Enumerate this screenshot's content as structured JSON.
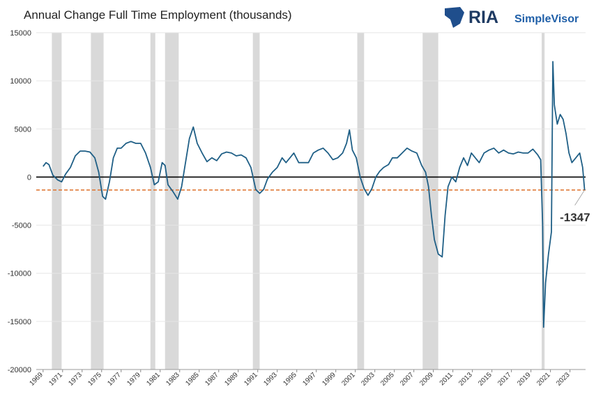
{
  "chart_data": {
    "type": "line",
    "title": "Annual Change Full Time Employment (thousands)",
    "logo": [
      "RIA",
      "SimpleVisor"
    ],
    "x": [
      1969.0,
      1969.3,
      1969.6,
      1970.0,
      1970.5,
      1970.9,
      1971.3,
      1971.8,
      1972.3,
      1972.8,
      1973.3,
      1973.8,
      1974.3,
      1974.7,
      1975.1,
      1975.4,
      1975.8,
      1976.2,
      1976.6,
      1977.0,
      1977.5,
      1978.0,
      1978.5,
      1979.0,
      1979.5,
      1980.0,
      1980.4,
      1980.8,
      1981.2,
      1981.5,
      1981.8,
      1982.3,
      1982.8,
      1983.2,
      1983.6,
      1984.0,
      1984.4,
      1984.8,
      1985.3,
      1985.8,
      1986.3,
      1986.8,
      1987.3,
      1987.8,
      1988.3,
      1988.8,
      1989.3,
      1989.8,
      1990.3,
      1990.8,
      1991.2,
      1991.6,
      1992.0,
      1992.5,
      1993.0,
      1993.5,
      1993.9,
      1994.3,
      1994.7,
      1995.2,
      1995.7,
      1996.2,
      1996.7,
      1997.2,
      1997.7,
      1998.2,
      1998.7,
      1999.2,
      1999.7,
      2000.1,
      2000.4,
      2000.7,
      2001.1,
      2001.5,
      2001.9,
      2002.3,
      2002.7,
      2003.1,
      2003.5,
      2003.9,
      2004.4,
      2004.8,
      2005.3,
      2005.8,
      2006.3,
      2006.8,
      2007.3,
      2007.8,
      2008.2,
      2008.5,
      2008.8,
      2009.1,
      2009.5,
      2009.9,
      2010.2,
      2010.5,
      2010.9,
      2011.3,
      2011.7,
      2012.1,
      2012.5,
      2012.9,
      2013.3,
      2013.7,
      2014.2,
      2014.7,
      2015.2,
      2015.7,
      2016.2,
      2016.7,
      2017.2,
      2017.7,
      2018.2,
      2018.7,
      2019.2,
      2019.7,
      2020.0,
      2020.2,
      2020.3,
      2020.5,
      2020.8,
      2021.1,
      2021.25,
      2021.4,
      2021.7,
      2022.0,
      2022.3,
      2022.6,
      2022.9,
      2023.2,
      2023.6,
      2024.0,
      2024.3,
      2024.5
    ],
    "series": [
      {
        "color": "#1f5f86",
        "values": [
          1100,
          1500,
          1300,
          200,
          -300,
          -500,
          300,
          1000,
          2200,
          2700,
          2700,
          2600,
          2000,
          500,
          -2000,
          -2300,
          -500,
          2000,
          3000,
          3000,
          3500,
          3700,
          3500,
          3500,
          2500,
          1000,
          -800,
          -500,
          1500,
          1200,
          -800,
          -1500,
          -2300,
          -1000,
          1500,
          4000,
          5200,
          3500,
          2500,
          1600,
          2000,
          1700,
          2400,
          2600,
          2500,
          2200,
          2300,
          2000,
          1000,
          -1300,
          -1700,
          -1300,
          -200,
          500,
          1000,
          2000,
          1500,
          2000,
          2500,
          1500,
          1500,
          1500,
          2500,
          2800,
          3000,
          2500,
          1800,
          2000,
          2500,
          3500,
          4900,
          2800,
          2000,
          0,
          -1200,
          -1900,
          -1200,
          0,
          600,
          1000,
          1300,
          2000,
          2000,
          2500,
          3000,
          2700,
          2500,
          1200,
          500,
          -1000,
          -4000,
          -6500,
          -8000,
          -8300,
          -4000,
          -1000,
          0,
          -500,
          1000,
          2000,
          1200,
          2500,
          2000,
          1500,
          2500,
          2800,
          3000,
          2500,
          2800,
          2500,
          2400,
          2600,
          2500,
          2500,
          2900,
          2300,
          1800,
          -5000,
          -15600,
          -11000,
          -8000,
          -5700,
          12000,
          7500,
          5500,
          6500,
          6000,
          4500,
          2500,
          1500,
          2000,
          2500,
          1000,
          -1347
        ]
      }
    ],
    "recessions": [
      [
        1969.9,
        1970.9
      ],
      [
        1973.9,
        1975.2
      ],
      [
        1980.0,
        1980.5
      ],
      [
        1981.5,
        1982.9
      ],
      [
        1990.5,
        1991.2
      ],
      [
        2001.2,
        2001.9
      ],
      [
        2007.9,
        2009.5
      ],
      [
        2020.1,
        2020.4
      ]
    ],
    "reference_line": {
      "value": -1347,
      "label": "-1347",
      "color": "#e07b39"
    },
    "xlim": [
      1968.3,
      2024.6
    ],
    "xticks": [
      1969,
      1971,
      1973,
      1975,
      1977,
      1979,
      1981,
      1983,
      1985,
      1987,
      1989,
      1991,
      1993,
      1995,
      1997,
      1999,
      2001,
      2003,
      2005,
      2007,
      2009,
      2011,
      2013,
      2015,
      2017,
      2019,
      2021,
      2023
    ],
    "ylim": [
      -20000,
      15000
    ],
    "yticks": [
      -20000,
      -15000,
      -10000,
      -5000,
      0,
      5000,
      10000,
      15000
    ],
    "grid": true
  }
}
